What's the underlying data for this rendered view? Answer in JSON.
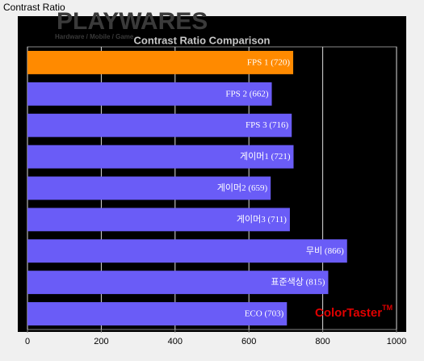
{
  "window_title": "Contrast Ratio",
  "watermark": {
    "brand": "PLAYWARES",
    "tagline": "Hardware / Mobile / Game"
  },
  "chart_data": {
    "type": "hbar",
    "title": "Contrast Ratio Comparison",
    "categories": [
      "FPS 1",
      "FPS 2",
      "FPS 3",
      "게이머1",
      "게이머2",
      "게이머3",
      "무비",
      "표준색상",
      "ECO"
    ],
    "values": [
      720,
      662,
      716,
      721,
      659,
      711,
      866,
      815,
      703
    ],
    "value_labels": [
      "(720)",
      "(662)",
      "(716)",
      "(721)",
      "(659)",
      "(711)",
      "(866)",
      "(815)",
      "(703)"
    ],
    "colors": [
      "#ff8a00",
      "#6a5cf7",
      "#6a5cf7",
      "#6a5cf7",
      "#6a5cf7",
      "#6a5cf7",
      "#6a5cf7",
      "#6a5cf7",
      "#6a5cf7"
    ],
    "xlim": [
      0,
      1000
    ],
    "xticks": [
      0,
      200,
      400,
      600,
      800,
      1000
    ],
    "grid": true,
    "annotation": {
      "text": "ColorTaster",
      "sup": "TM",
      "color": "#e00000"
    }
  }
}
